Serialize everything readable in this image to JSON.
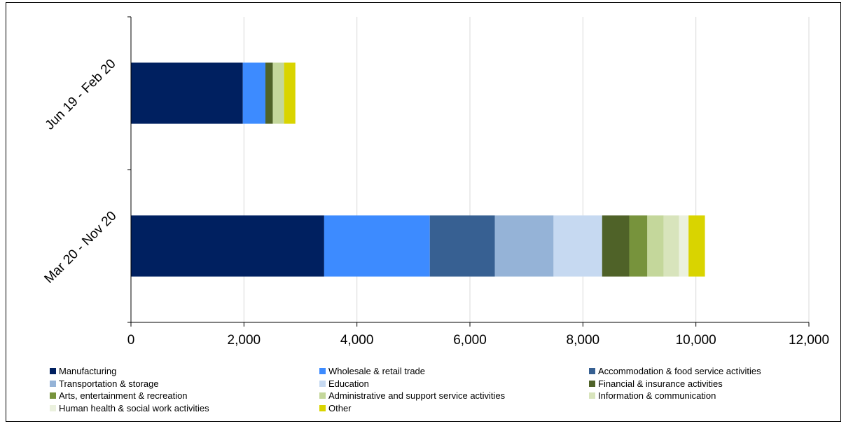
{
  "chart_data": {
    "type": "bar",
    "orientation": "horizontal",
    "stacked": true,
    "categories": [
      "Jun 19 - Feb 20",
      "Mar 20 - Nov 20"
    ],
    "xlim": [
      0,
      12000
    ],
    "xticks": [
      0,
      2000,
      4000,
      6000,
      8000,
      10000,
      12000
    ],
    "xtick_labels": [
      "0",
      "2,000",
      "4,000",
      "6,000",
      "8,000",
      "10,000",
      "12,000"
    ],
    "grid": true,
    "legend_position": "bottom",
    "series": [
      {
        "name": "Manufacturing",
        "color": "#002060",
        "values": [
          1980,
          3420
        ]
      },
      {
        "name": "Wholesale & retail trade",
        "color": "#3d8bff",
        "values": [
          400,
          1870
        ]
      },
      {
        "name": "Accommodation & food service activities",
        "color": "#376092",
        "values": [
          0,
          1150
        ]
      },
      {
        "name": "Transportation & storage",
        "color": "#95b3d7",
        "values": [
          0,
          1040
        ]
      },
      {
        "name": "Education",
        "color": "#c6d9f1",
        "values": [
          0,
          860
        ]
      },
      {
        "name": "Financial & insurance activities",
        "color": "#4f6228",
        "values": [
          130,
          480
        ]
      },
      {
        "name": "Arts, entertainment & recreation",
        "color": "#77933c",
        "values": [
          0,
          320
        ]
      },
      {
        "name": "Administrative and support service activities",
        "color": "#c4d79b",
        "values": [
          200,
          290
        ]
      },
      {
        "name": "Information & communication",
        "color": "#d8e4bc",
        "values": [
          0,
          270
        ]
      },
      {
        "name": "Human health & social work activities",
        "color": "#ebf1de",
        "values": [
          0,
          170
        ]
      },
      {
        "name": "Other",
        "color": "#d9d400",
        "values": [
          200,
          290
        ]
      }
    ]
  }
}
